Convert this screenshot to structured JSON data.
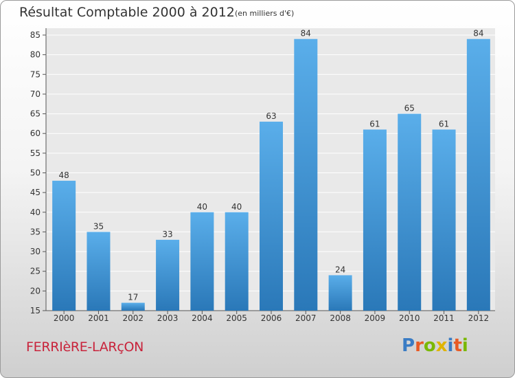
{
  "header": {
    "title": "Résultat Comptable 2000 à 2012",
    "subtitle": "(en milliers d'€)"
  },
  "footer": {
    "commune": "FERRIèRE-LARçON",
    "logo": "Proxiti",
    "logo_letters": [
      {
        "ch": "P",
        "color": "#3a7cc4"
      },
      {
        "ch": "r",
        "color": "#e85a24"
      },
      {
        "ch": "o",
        "color": "#7ab800"
      },
      {
        "ch": "x",
        "color": "#e0b400"
      },
      {
        "ch": "i",
        "color": "#3a7cc4"
      },
      {
        "ch": "t",
        "color": "#e85a24"
      },
      {
        "ch": "i",
        "color": "#7ab800"
      }
    ]
  },
  "chart_data": {
    "type": "bar",
    "title": "Résultat Comptable 2000 à 2012",
    "subtitle": "(en milliers d'€)",
    "categories": [
      "2000",
      "2001",
      "2002",
      "2003",
      "2004",
      "2005",
      "2006",
      "2007",
      "2008",
      "2009",
      "2010",
      "2011",
      "2012"
    ],
    "values": [
      48,
      35,
      17,
      33,
      40,
      40,
      63,
      84,
      24,
      61,
      65,
      61,
      84
    ],
    "ylim": [
      15,
      85
    ],
    "yticks": [
      15,
      20,
      25,
      30,
      35,
      40,
      45,
      50,
      55,
      60,
      65,
      70,
      75,
      80,
      85
    ],
    "grid": true,
    "bar_color": "#4a9ee0",
    "bar_color_dark": "#2f7fc0"
  }
}
